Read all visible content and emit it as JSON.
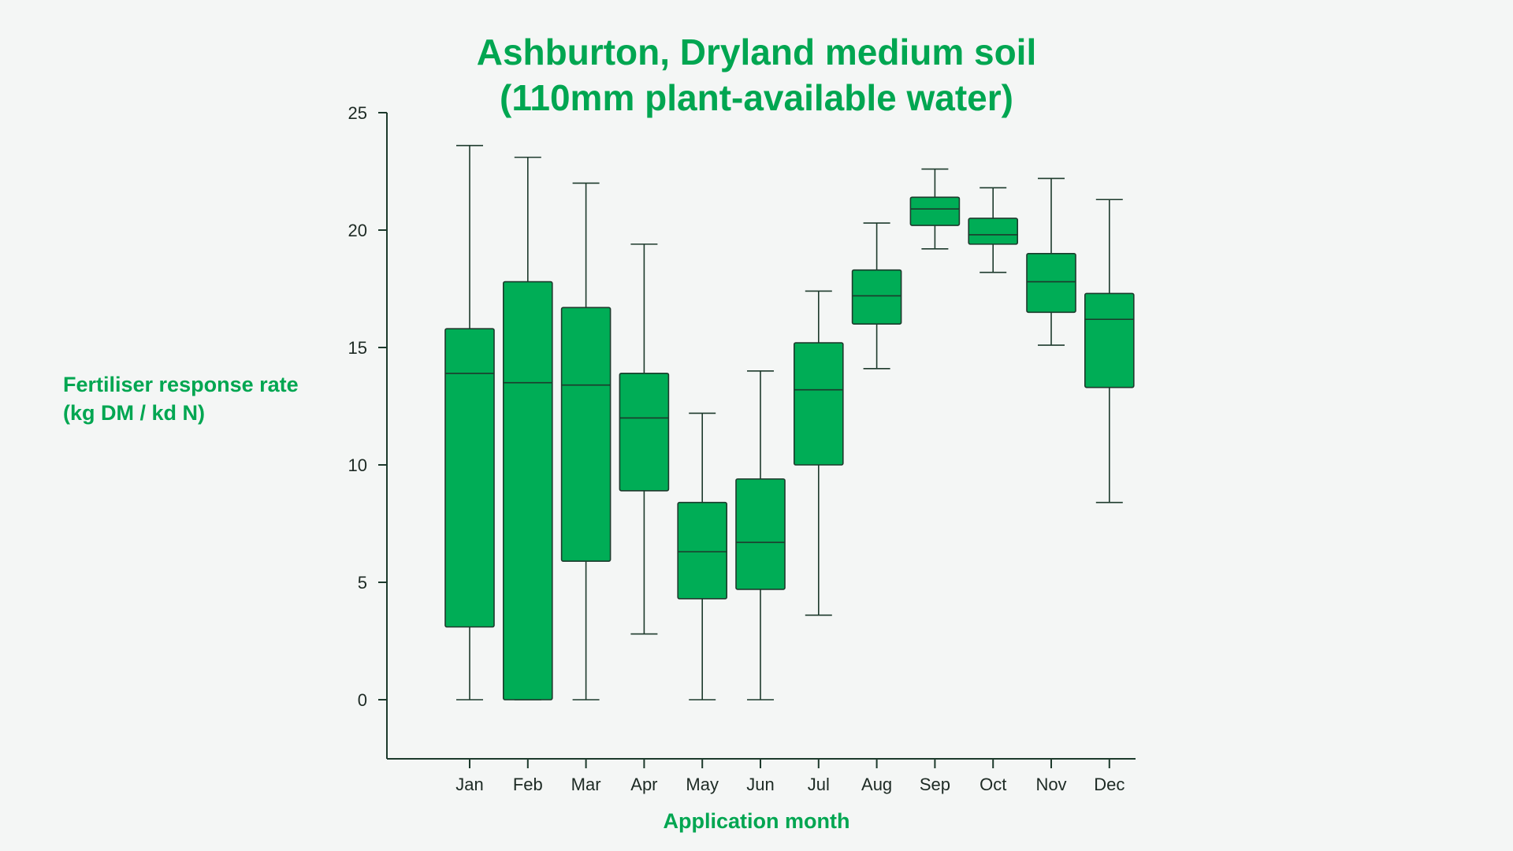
{
  "colors": {
    "accent": "#00a651",
    "box_fill": "#00ad56",
    "stroke": "#1d3a2c",
    "background": "#f4f6f5"
  },
  "chart_data": {
    "type": "box",
    "title": [
      "Ashburton, Dryland medium soil",
      "(110mm plant-available water)"
    ],
    "ylabel": [
      "Fertiliser response rate",
      "(kg DM / kd N)"
    ],
    "xlabel": "Application month",
    "ylim": [
      -2.5,
      25
    ],
    "yticks": [
      0,
      5,
      10,
      15,
      20,
      25
    ],
    "grid": false,
    "categories": [
      "Jan",
      "Feb",
      "Mar",
      "Apr",
      "May",
      "Jun",
      "Jul",
      "Aug",
      "Sep",
      "Oct",
      "Nov",
      "Dec"
    ],
    "series": [
      {
        "min": [
          0.0,
          0.0,
          0.0,
          2.8,
          0.0,
          0.0,
          3.6,
          14.1,
          19.2,
          18.2,
          15.1,
          8.4
        ],
        "q1": [
          3.1,
          0.0,
          5.9,
          8.9,
          4.3,
          4.7,
          10.0,
          16.0,
          20.2,
          19.4,
          16.5,
          13.3
        ],
        "median": [
          13.9,
          13.5,
          13.4,
          12.0,
          6.3,
          6.7,
          13.2,
          17.2,
          20.9,
          19.8,
          17.8,
          16.2
        ],
        "q3": [
          15.8,
          17.8,
          16.7,
          13.9,
          8.4,
          9.4,
          15.2,
          18.3,
          21.4,
          20.5,
          19.0,
          17.3
        ],
        "max": [
          23.6,
          23.1,
          22.0,
          19.4,
          12.2,
          14.0,
          17.4,
          20.3,
          22.6,
          21.8,
          22.2,
          21.3
        ]
      }
    ]
  }
}
